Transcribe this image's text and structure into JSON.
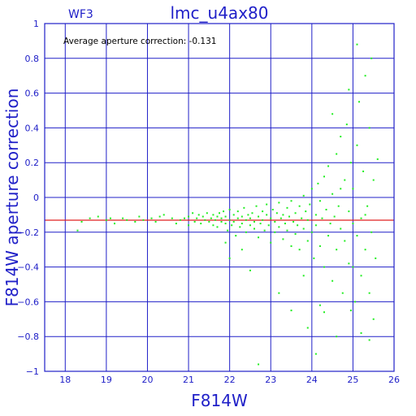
{
  "panel_label": "WF3",
  "annotation": "Average aperture correction: -0.131",
  "chart_data": {
    "type": "scatter",
    "title": "lmc_u4ax80",
    "xlabel": "F814W",
    "ylabel": "F814W aperture correction",
    "xlim": [
      17.5,
      26
    ],
    "ylim": [
      -1,
      1
    ],
    "xticks": [
      "18",
      "19",
      "20",
      "21",
      "22",
      "23",
      "24",
      "25",
      "26"
    ],
    "yticks": [
      "1",
      "0.8",
      "0.6",
      "0.4",
      "0.2",
      "0",
      "−0.2",
      "−0.4",
      "−0.6",
      "−0.8",
      "−1"
    ],
    "grid": true,
    "reference_line": {
      "y": -0.131,
      "color": "#e02020"
    },
    "point_color": "#22ee22",
    "axis_color": "#2020c8",
    "series": [
      {
        "points": [
          [
            18.3,
            -0.19
          ],
          [
            18.4,
            -0.14
          ],
          [
            18.6,
            -0.12
          ],
          [
            18.8,
            -0.11
          ],
          [
            19.0,
            -0.13
          ],
          [
            19.1,
            -0.12
          ],
          [
            19.2,
            -0.15
          ],
          [
            19.4,
            -0.12
          ],
          [
            19.5,
            -0.13
          ],
          [
            19.7,
            -0.14
          ],
          [
            19.8,
            -0.11
          ],
          [
            19.9,
            -0.13
          ],
          [
            20.1,
            -0.12
          ],
          [
            20.2,
            -0.14
          ],
          [
            20.3,
            -0.11
          ],
          [
            20.4,
            -0.1
          ],
          [
            20.6,
            -0.12
          ],
          [
            20.7,
            -0.15
          ],
          [
            20.8,
            -0.13
          ],
          [
            20.9,
            -0.12
          ],
          [
            21.0,
            -0.11
          ],
          [
            21.0,
            -0.16
          ],
          [
            21.1,
            -0.09
          ],
          [
            21.15,
            -0.14
          ],
          [
            21.2,
            -0.12
          ],
          [
            21.25,
            -0.1
          ],
          [
            21.3,
            -0.15
          ],
          [
            21.35,
            -0.11
          ],
          [
            21.4,
            -0.13
          ],
          [
            21.45,
            -0.09
          ],
          [
            21.5,
            -0.14
          ],
          [
            21.55,
            -0.12
          ],
          [
            21.6,
            -0.16
          ],
          [
            21.6,
            -0.1
          ],
          [
            21.65,
            -0.13
          ],
          [
            21.7,
            -0.11
          ],
          [
            21.7,
            -0.17
          ],
          [
            21.75,
            -0.09
          ],
          [
            21.8,
            -0.14
          ],
          [
            21.8,
            -0.12
          ],
          [
            21.85,
            -0.08
          ],
          [
            21.9,
            -0.15
          ],
          [
            21.9,
            -0.11
          ],
          [
            21.95,
            -0.19
          ],
          [
            22.0,
            -0.13
          ],
          [
            22.0,
            -0.07
          ],
          [
            22.05,
            -0.16
          ],
          [
            22.1,
            -0.1
          ],
          [
            22.1,
            -0.14
          ],
          [
            22.15,
            -0.22
          ],
          [
            22.2,
            -0.12
          ],
          [
            22.2,
            -0.08
          ],
          [
            22.25,
            -0.17
          ],
          [
            22.3,
            -0.11
          ],
          [
            22.3,
            -0.15
          ],
          [
            22.35,
            -0.06
          ],
          [
            22.4,
            -0.13
          ],
          [
            22.4,
            -0.2
          ],
          [
            22.45,
            -0.1
          ],
          [
            22.5,
            -0.16
          ],
          [
            22.5,
            -0.12
          ],
          [
            22.55,
            -0.09
          ],
          [
            22.6,
            -0.18
          ],
          [
            22.6,
            -0.14
          ],
          [
            22.65,
            -0.05
          ],
          [
            22.7,
            -0.11
          ],
          [
            22.7,
            -0.23
          ],
          [
            22.75,
            -0.15
          ],
          [
            22.8,
            -0.08
          ],
          [
            22.8,
            -0.13
          ],
          [
            22.85,
            -0.19
          ],
          [
            22.9,
            -0.1
          ],
          [
            22.9,
            -0.04
          ],
          [
            22.95,
            -0.16
          ],
          [
            23.0,
            -0.12
          ],
          [
            23.0,
            -0.26
          ],
          [
            23.05,
            -0.07
          ],
          [
            23.1,
            -0.14
          ],
          [
            23.1,
            -0.2
          ],
          [
            23.15,
            -0.09
          ],
          [
            23.2,
            -0.17
          ],
          [
            23.2,
            -0.03
          ],
          [
            23.25,
            -0.12
          ],
          [
            23.3,
            -0.24
          ],
          [
            23.3,
            -0.1
          ],
          [
            23.35,
            -0.15
          ],
          [
            23.4,
            -0.06
          ],
          [
            23.4,
            -0.19
          ],
          [
            23.45,
            -0.11
          ],
          [
            23.5,
            -0.28
          ],
          [
            23.5,
            -0.02
          ],
          [
            23.55,
            -0.14
          ],
          [
            23.6,
            -0.09
          ],
          [
            23.6,
            -0.21
          ],
          [
            23.65,
            -0.16
          ],
          [
            23.7,
            -0.05
          ],
          [
            23.7,
            -0.3
          ],
          [
            23.75,
            -0.12
          ],
          [
            23.8,
            -0.18
          ],
          [
            23.8,
            0.01
          ],
          [
            23.85,
            -0.08
          ],
          [
            23.9,
            -0.25
          ],
          [
            23.9,
            -0.13
          ],
          [
            23.95,
            -0.04
          ],
          [
            24.0,
            -0.2
          ],
          [
            24.0,
            0.05
          ],
          [
            24.05,
            -0.35
          ],
          [
            24.1,
            -0.1
          ],
          [
            24.1,
            -0.16
          ],
          [
            24.15,
            0.08
          ],
          [
            24.2,
            -0.02
          ],
          [
            24.2,
            -0.28
          ],
          [
            24.25,
            -0.12
          ],
          [
            24.3,
            0.12
          ],
          [
            24.3,
            -0.4
          ],
          [
            24.35,
            -0.07
          ],
          [
            24.4,
            -0.22
          ],
          [
            24.4,
            0.18
          ],
          [
            24.45,
            -0.15
          ],
          [
            24.5,
            0.02
          ],
          [
            24.5,
            -0.48
          ],
          [
            24.55,
            -0.11
          ],
          [
            24.6,
            0.25
          ],
          [
            24.6,
            -0.3
          ],
          [
            24.65,
            -0.05
          ],
          [
            24.7,
            0.35
          ],
          [
            24.7,
            -0.18
          ],
          [
            24.75,
            -0.55
          ],
          [
            24.8,
            0.1
          ],
          [
            24.8,
            -0.25
          ],
          [
            24.85,
            0.42
          ],
          [
            24.9,
            -0.08
          ],
          [
            24.9,
            -0.38
          ],
          [
            24.95,
            0.2
          ],
          [
            25.0,
            -0.15
          ],
          [
            25.0,
            0.05
          ],
          [
            25.05,
            -0.6
          ],
          [
            25.1,
            0.3
          ],
          [
            25.1,
            -0.22
          ],
          [
            25.15,
            0.55
          ],
          [
            25.2,
            -0.12
          ],
          [
            25.2,
            -0.45
          ],
          [
            25.25,
            0.15
          ],
          [
            25.3,
            -0.3
          ],
          [
            25.3,
            0.7
          ],
          [
            25.35,
            -0.05
          ],
          [
            25.4,
            -0.55
          ],
          [
            25.4,
            0.4
          ],
          [
            25.45,
            -0.2
          ],
          [
            25.5,
            0.1
          ],
          [
            25.5,
            -0.7
          ],
          [
            25.55,
            -0.35
          ],
          [
            23.5,
            -0.65
          ],
          [
            23.9,
            -0.75
          ],
          [
            24.2,
            -0.62
          ],
          [
            24.6,
            -0.8
          ],
          [
            25.2,
            -0.78
          ],
          [
            25.4,
            -0.82
          ],
          [
            25.1,
            0.88
          ],
          [
            24.1,
            -0.9
          ],
          [
            22.7,
            -0.96
          ],
          [
            22.0,
            -0.35
          ],
          [
            22.5,
            -0.42
          ],
          [
            23.2,
            -0.55
          ],
          [
            24.9,
            0.62
          ],
          [
            24.5,
            0.48
          ],
          [
            25.6,
            0.22
          ],
          [
            25.0,
            -0.4
          ],
          [
            24.3,
            -0.66
          ],
          [
            23.8,
            -0.45
          ],
          [
            22.3,
            -0.3
          ],
          [
            21.9,
            -0.26
          ],
          [
            24.7,
            0.05
          ],
          [
            25.3,
            -0.1
          ],
          [
            24.95,
            -0.65
          ],
          [
            25.45,
            0.8
          ]
        ]
      }
    ]
  }
}
